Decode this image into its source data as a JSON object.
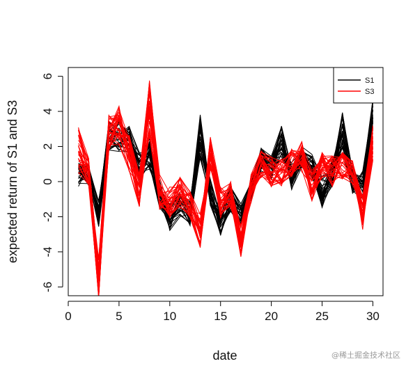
{
  "chart_data": {
    "type": "line",
    "xlabel": "date",
    "ylabel": "expected return of S1 and S3",
    "xlim": [
      0,
      31
    ],
    "ylim": [
      -6.5,
      6.5
    ],
    "xticks": [
      0,
      5,
      10,
      15,
      20,
      25,
      30
    ],
    "yticks": [
      -6,
      -4,
      -2,
      0,
      2,
      4,
      6
    ],
    "legend_position": "top-right",
    "lines_per_series": 30,
    "series": [
      {
        "name": "S1",
        "color": "#000000",
        "x": [
          1,
          2,
          3,
          4,
          5,
          6,
          7,
          8,
          9,
          10,
          11,
          12,
          13,
          14,
          15,
          16,
          17,
          18,
          19,
          20,
          21,
          22,
          23,
          24,
          25,
          26,
          27,
          28,
          29,
          30
        ],
        "center": [
          0.3,
          0.4,
          -1.8,
          2.6,
          2.6,
          2.4,
          0.8,
          1.6,
          -0.7,
          -2.0,
          -1.2,
          -1.8,
          2.6,
          -0.6,
          -2.3,
          -1.0,
          -1.9,
          -0.5,
          1.3,
          0.8,
          2.2,
          0.3,
          1.4,
          0.9,
          -0.6,
          0.5,
          2.8,
          0.0,
          -0.2,
          3.8
        ],
        "spread": [
          0.8,
          0.7,
          0.8,
          0.8,
          0.9,
          0.8,
          0.9,
          0.9,
          0.8,
          0.8,
          0.8,
          0.8,
          1.3,
          0.8,
          0.8,
          0.7,
          0.8,
          0.7,
          0.7,
          0.7,
          1.0,
          0.8,
          0.6,
          0.7,
          0.9,
          0.8,
          1.2,
          0.7,
          0.8,
          0.9
        ]
      },
      {
        "name": "S3",
        "color": "#ff0000",
        "x": [
          1,
          2,
          3,
          4,
          5,
          6,
          7,
          8,
          9,
          10,
          11,
          12,
          13,
          14,
          15,
          16,
          17,
          18,
          19,
          20,
          21,
          22,
          23,
          24,
          25,
          26,
          27,
          28,
          29,
          30
        ],
        "center": [
          1.8,
          0.6,
          -5.5,
          2.8,
          3.2,
          1.6,
          -0.5,
          4.2,
          -0.6,
          -1.2,
          -0.6,
          -1.2,
          -2.8,
          1.7,
          -1.2,
          -0.7,
          -3.3,
          -0.4,
          1.0,
          0.6,
          0.5,
          1.1,
          1.4,
          -0.2,
          0.9,
          0.6,
          0.9,
          0.4,
          -1.8,
          2.4
        ],
        "spread": [
          1.3,
          0.8,
          1.2,
          1.1,
          1.2,
          1.1,
          1.0,
          1.6,
          1.0,
          0.9,
          0.9,
          0.9,
          1.0,
          1.0,
          0.9,
          0.9,
          1.0,
          0.8,
          0.8,
          0.9,
          0.8,
          0.8,
          0.9,
          0.9,
          0.8,
          0.9,
          0.8,
          0.8,
          1.0,
          1.2
        ]
      }
    ]
  },
  "watermark": "@稀土掘金技术社区"
}
